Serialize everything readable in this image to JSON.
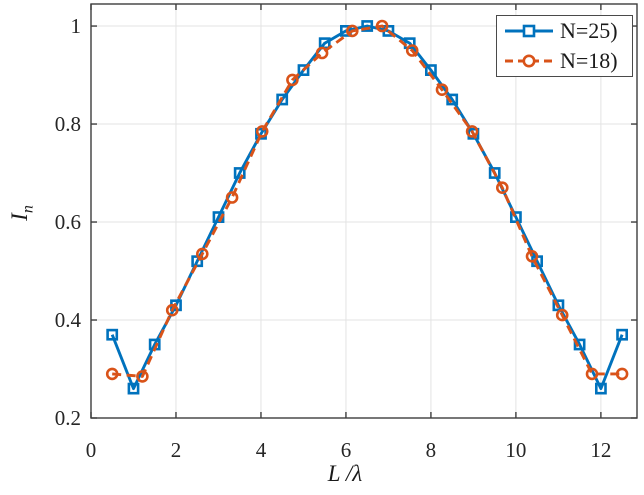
{
  "figure": {
    "background": "#ffffff",
    "axis_color": "#3d3d3d",
    "grid_color": "#e3e3e3",
    "tick_label_color": "#262626",
    "legend_border_color": "#4a4a4a"
  },
  "chart_data": {
    "type": "line",
    "title": "",
    "xlabel": "L /λ",
    "ylabel": "I",
    "ylabel_sub": "n",
    "xlim": [
      0,
      12.85
    ],
    "ylim": [
      0.2,
      1.045
    ],
    "grid": true,
    "legend_position": "top-right",
    "xticks": {
      "values": [
        0,
        2,
        4,
        6,
        8,
        10,
        12
      ],
      "labels": [
        "0",
        "2",
        "4",
        "6",
        "8",
        "10",
        "12"
      ]
    },
    "yticks": {
      "values": [
        0.2,
        0.4,
        0.6,
        0.8,
        1
      ],
      "labels": [
        "0.2",
        "0.4",
        "0.6",
        "0.8",
        "1"
      ]
    },
    "series": [
      {
        "name": "N=25)",
        "color": "#0072BD",
        "line_style": "solid",
        "marker": "square",
        "x": [
          0.5,
          1,
          1.5,
          2,
          2.5,
          3,
          3.5,
          4,
          4.5,
          5,
          5.5,
          6,
          6.5,
          7,
          7.5,
          8,
          8.5,
          9,
          9.5,
          10,
          10.5,
          11,
          11.5,
          12,
          12.5
        ],
        "y": [
          0.37,
          0.26,
          0.35,
          0.43,
          0.52,
          0.61,
          0.7,
          0.78,
          0.85,
          0.91,
          0.965,
          0.99,
          1.0,
          0.99,
          0.965,
          0.91,
          0.85,
          0.78,
          0.7,
          0.61,
          0.52,
          0.43,
          0.35,
          0.26,
          0.37
        ]
      },
      {
        "name": "N=18)",
        "color": "#D95319",
        "line_style": "dashed",
        "marker": "circle",
        "x": [
          0.5,
          1.21,
          1.91,
          2.62,
          3.32,
          4.03,
          4.74,
          5.44,
          6.15,
          6.85,
          7.56,
          8.26,
          8.97,
          9.68,
          10.38,
          11.09,
          11.79,
          12.5
        ],
        "y": [
          0.29,
          0.285,
          0.42,
          0.535,
          0.65,
          0.785,
          0.89,
          0.945,
          0.99,
          1.0,
          0.95,
          0.87,
          0.785,
          0.67,
          0.53,
          0.41,
          0.29,
          0.29
        ]
      }
    ]
  }
}
